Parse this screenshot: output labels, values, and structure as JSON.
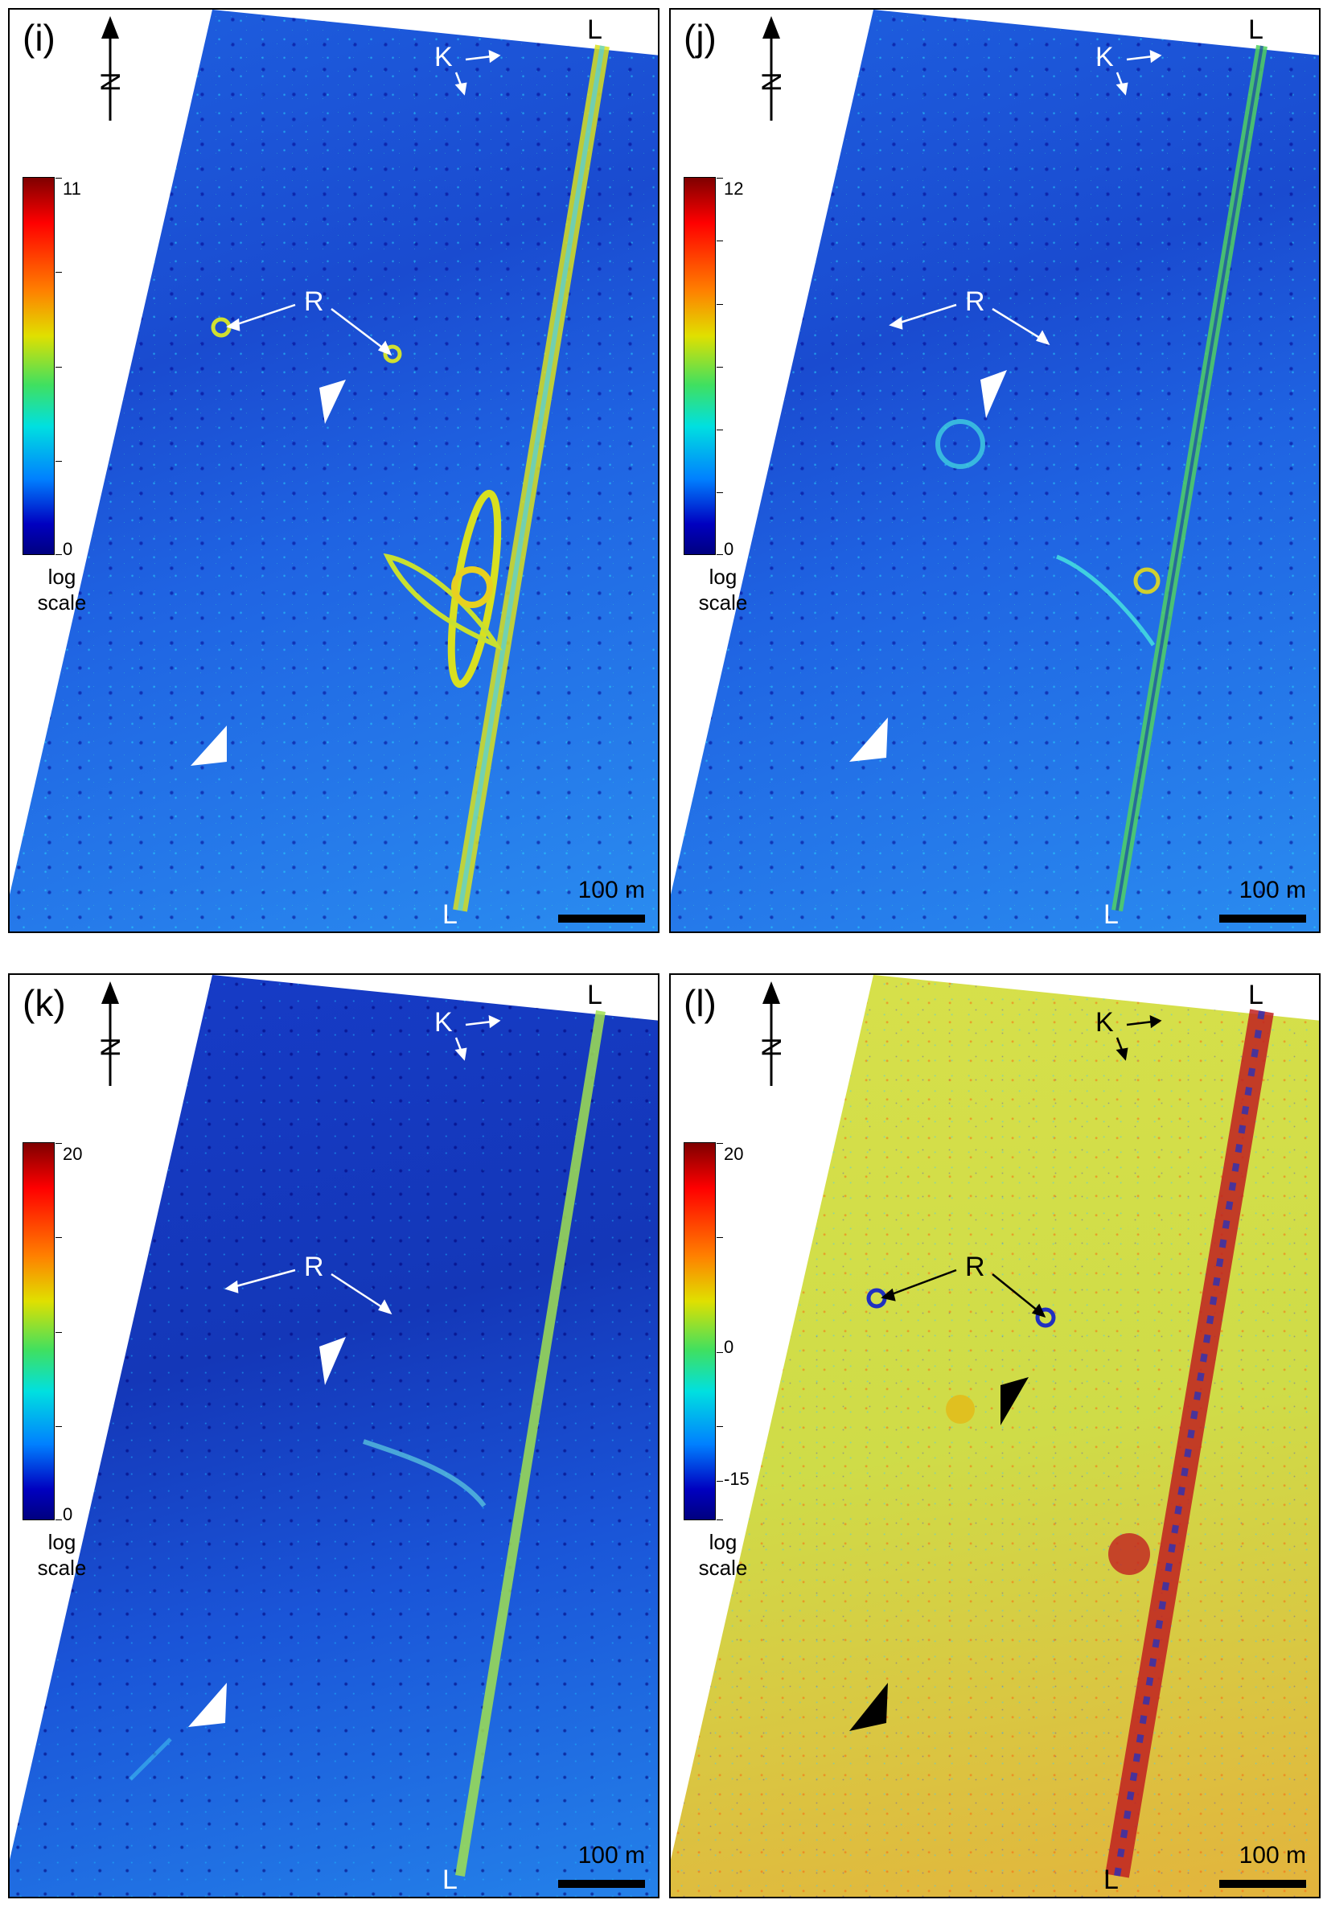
{
  "panels": [
    {
      "id": "i",
      "label": "(i)",
      "colorbar": {
        "max": "11",
        "min": "0",
        "unit": "log\nscale"
      },
      "scale": "100 m",
      "markers": {
        "L": "L",
        "K": "K",
        "R": "R"
      },
      "arrowhead_color": "#ffffff"
    },
    {
      "id": "j",
      "label": "(j)",
      "colorbar": {
        "max": "12",
        "min": "0",
        "unit": "log\nscale"
      },
      "scale": "100 m",
      "markers": {
        "L": "L",
        "K": "K",
        "R": "R"
      },
      "arrowhead_color": "#ffffff"
    },
    {
      "id": "k",
      "label": "(k)",
      "colorbar": {
        "max": "20",
        "min": "0",
        "unit": "log\nscale"
      },
      "scale": "100 m",
      "markers": {
        "L": "L",
        "K": "K",
        "R": "R"
      },
      "arrowhead_color": "#ffffff"
    },
    {
      "id": "l",
      "label": "(l)",
      "colorbar": {
        "max": "20",
        "mid": "0",
        "min": "-15",
        "unit": "log\nscale"
      },
      "scale": "100 m",
      "markers": {
        "L": "L",
        "K": "K",
        "R": "R"
      },
      "arrowhead_color": "#000000"
    }
  ],
  "north_label": "N",
  "colors": {
    "linear_feature_bright": "#e8e000",
    "linear_feature_dark": "#c02020"
  }
}
